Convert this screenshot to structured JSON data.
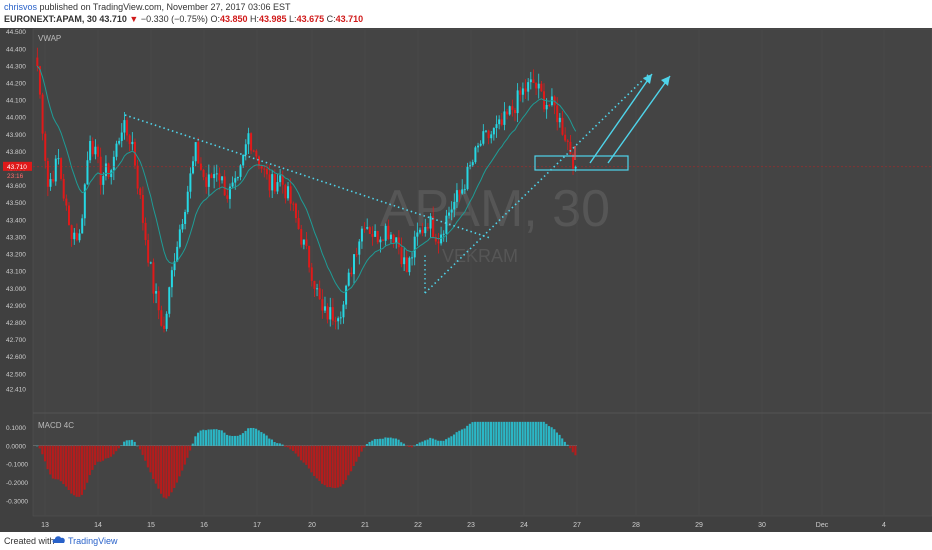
{
  "header": {
    "author": "chrisvos",
    "published_text": "published on TradingView.com, November 27, 2017 03:06 EST",
    "symbol": "EURONEXT:APAM, 30",
    "last": "43.710",
    "change": "−0.330 (−0.75%)",
    "open_label": "O:",
    "open": "43.850",
    "high_label": "H:",
    "high": "43.985",
    "low_label": "L:",
    "low": "43.675",
    "close_label": "C:",
    "close": "43.710"
  },
  "footer": {
    "created_with": "Created with",
    "brand": "TradingView"
  },
  "colors": {
    "background": "#404040",
    "up": "#26d7e3",
    "down": "#e01a1a",
    "vwap": "#1e9c96",
    "trendline": "#4fd4ea",
    "last_price": "#e01a1a"
  },
  "chart_data": {
    "type": "candlestick",
    "indicator_label": "VWAP",
    "watermark_symbol": "APAM, 30",
    "watermark_sub": "VEKRAM",
    "last_price_label": "43.710",
    "countdown_label": "23:16",
    "price_ticks": [
      "44.500",
      "44.400",
      "44.300",
      "44.200",
      "44.100",
      "44.000",
      "43.900",
      "43.800",
      "43.700",
      "43.600",
      "43.500",
      "43.400",
      "43.300",
      "43.200",
      "43.100",
      "43.000",
      "42.900",
      "42.800",
      "42.700",
      "42.600",
      "42.500",
      "42.410"
    ],
    "price_ylim": [
      42.37,
      44.51
    ],
    "x_ticks": [
      "13",
      "14",
      "15",
      "16",
      "17",
      "20",
      "21",
      "22",
      "23",
      "24",
      "27",
      "28",
      "29",
      "30",
      "Dec",
      "4"
    ],
    "session_closes": [
      [
        44.3,
        43.6,
        43.75,
        43.35,
        43.3
      ],
      [
        43.9,
        43.65,
        43.7,
        43.95,
        43.85
      ],
      [
        43.4,
        43.0,
        42.75,
        43.2,
        43.5
      ],
      [
        43.8,
        43.6,
        43.7,
        43.55,
        43.6
      ],
      [
        43.9,
        43.75,
        43.6,
        43.65,
        43.5
      ],
      [
        43.3,
        43.1,
        42.85,
        42.85,
        42.9
      ],
      [
        43.2,
        43.4,
        43.3,
        43.35,
        43.3
      ],
      [
        43.1,
        43.3,
        43.4,
        43.3,
        43.45
      ],
      [
        43.55,
        43.7,
        43.85,
        43.9,
        43.95
      ],
      [
        44.05,
        44.15,
        44.2,
        44.1,
        44.05
      ],
      [
        43.9,
        43.71
      ]
    ],
    "macd": {
      "label": "MACD 4C",
      "ticks": [
        "0.1000",
        "0.0000",
        "-0.1000",
        "-0.2000",
        "-0.3000"
      ],
      "ylim": [
        -0.36,
        0.14
      ]
    }
  }
}
